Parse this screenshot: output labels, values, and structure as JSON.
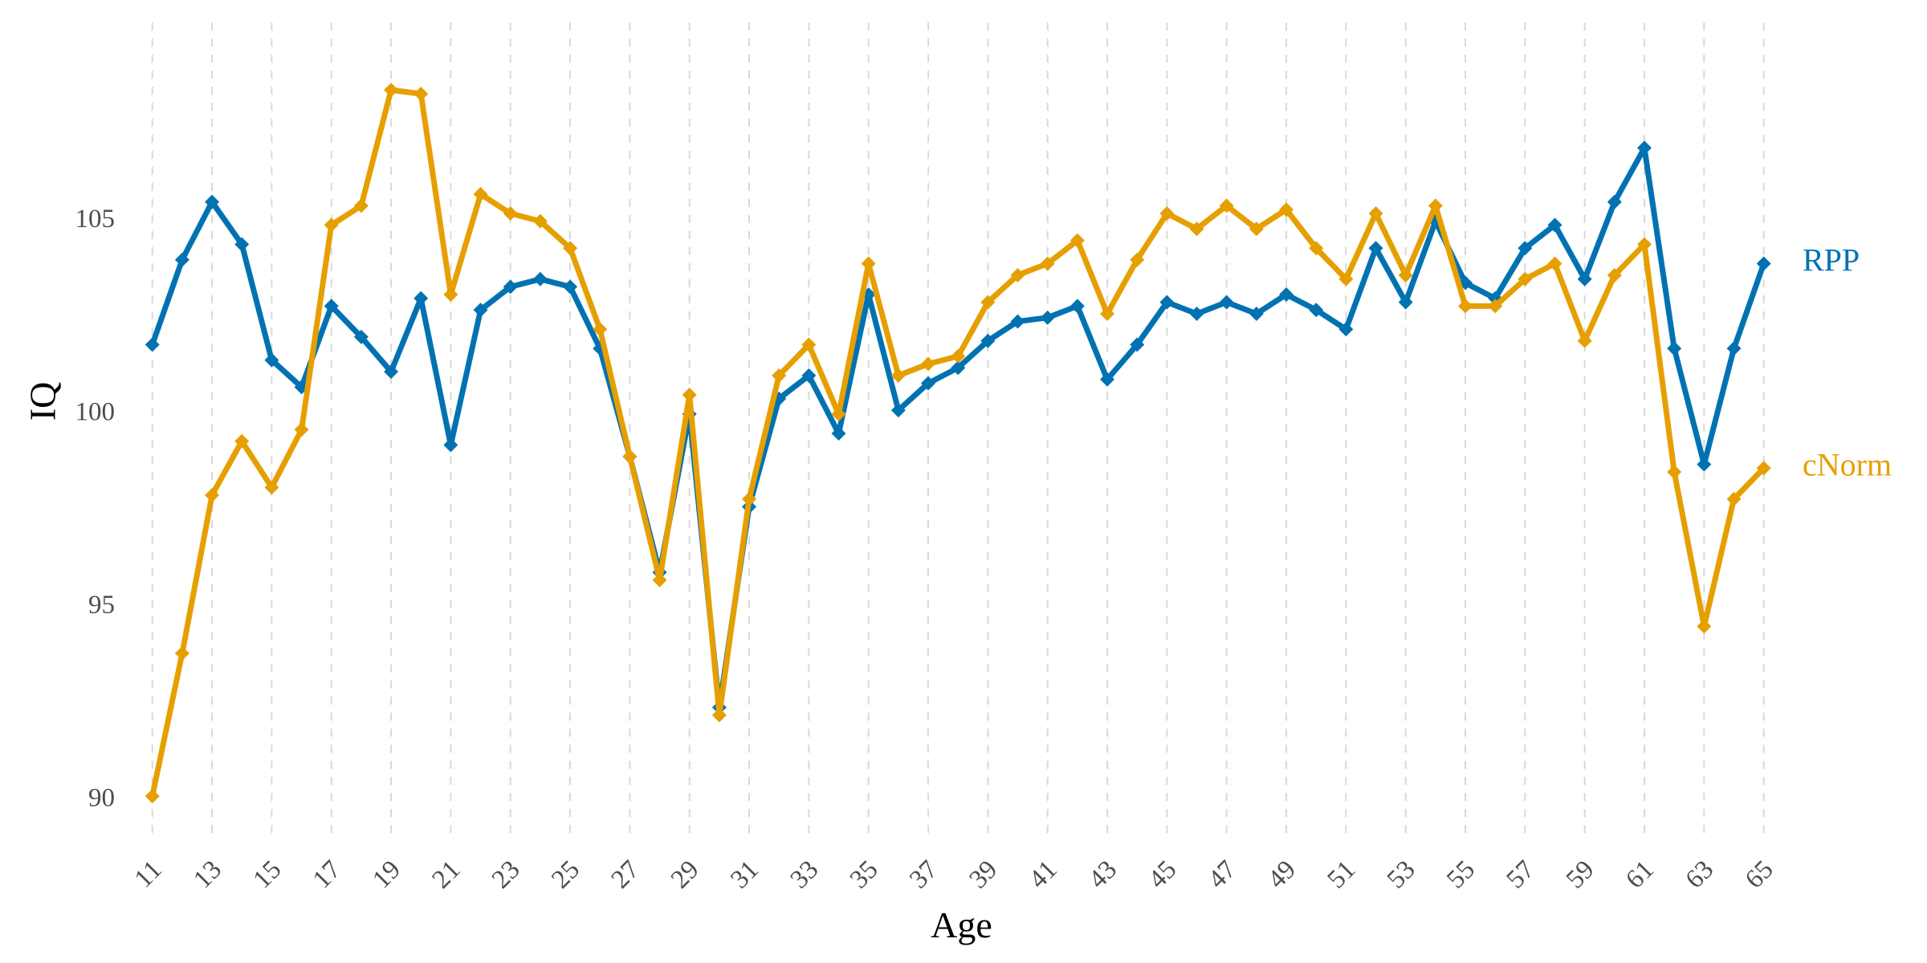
{
  "chart_data": {
    "type": "line",
    "title": "",
    "xlabel": "Age",
    "ylabel": "IQ",
    "x": [
      11,
      12,
      13,
      14,
      15,
      16,
      17,
      18,
      19,
      20,
      21,
      22,
      23,
      24,
      25,
      26,
      27,
      28,
      29,
      30,
      31,
      32,
      33,
      34,
      35,
      36,
      37,
      38,
      39,
      40,
      41,
      42,
      43,
      44,
      45,
      46,
      47,
      48,
      49,
      50,
      51,
      52,
      53,
      54,
      55,
      56,
      57,
      58,
      59,
      60,
      61,
      62,
      63,
      64,
      65
    ],
    "x_ticks": [
      11,
      13,
      15,
      17,
      19,
      21,
      23,
      25,
      27,
      29,
      31,
      33,
      35,
      37,
      39,
      41,
      43,
      45,
      47,
      49,
      51,
      53,
      55,
      57,
      59,
      61,
      63,
      65
    ],
    "y_ticks": [
      90,
      95,
      100,
      105
    ],
    "xlim": [
      10.2,
      66.3
    ],
    "ylim": [
      89.0,
      109.9
    ],
    "grid": "vertical dashed at each x tick",
    "legend": "direct labels at right end of each series",
    "series": [
      {
        "name": "RPP",
        "color": "#0072b2",
        "values": [
          101.8,
          104.0,
          105.5,
          104.4,
          101.4,
          100.7,
          102.8,
          102.0,
          101.1,
          103.0,
          99.2,
          102.7,
          103.3,
          103.5,
          103.3,
          101.7,
          98.9,
          95.9,
          100.0,
          92.4,
          97.6,
          100.4,
          101.0,
          99.5,
          103.1,
          100.1,
          100.8,
          101.2,
          101.9,
          102.4,
          102.5,
          102.8,
          100.9,
          101.8,
          102.9,
          102.6,
          102.9,
          102.6,
          103.1,
          102.7,
          102.2,
          104.3,
          102.9,
          105.0,
          103.4,
          103.0,
          104.3,
          104.9,
          103.5,
          105.5,
          106.9,
          101.7,
          98.7,
          101.7,
          103.9
        ]
      },
      {
        "name": "cNorm",
        "color": "#e69f00",
        "values": [
          90.1,
          93.8,
          97.9,
          99.3,
          98.1,
          99.6,
          104.9,
          105.4,
          108.4,
          108.3,
          103.1,
          105.7,
          105.2,
          105.0,
          104.3,
          102.2,
          98.9,
          95.7,
          100.5,
          92.2,
          97.8,
          101.0,
          101.8,
          100.0,
          103.9,
          101.0,
          101.3,
          101.5,
          102.9,
          103.6,
          103.9,
          104.5,
          102.6,
          104.0,
          105.2,
          104.8,
          105.4,
          104.8,
          105.3,
          104.3,
          103.5,
          105.2,
          103.6,
          105.4,
          102.8,
          102.8,
          103.5,
          103.9,
          101.9,
          103.6,
          104.4,
          98.5,
          94.5,
          97.8,
          98.6
        ]
      }
    ]
  }
}
